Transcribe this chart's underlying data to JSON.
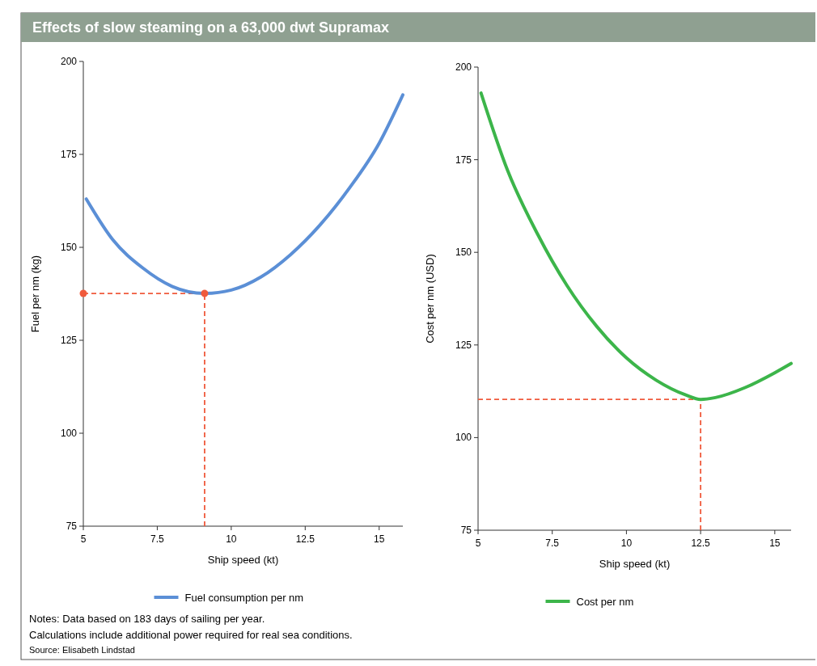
{
  "chart_data": [
    {
      "type": "line",
      "title": "Effects of slow steaming on a 63,000 dwt Supramax",
      "xlabel": "Ship speed (kt)",
      "ylabel": "Fuel per nm (kg)",
      "xlim": [
        5,
        15.8
      ],
      "ylim": [
        75,
        200
      ],
      "xticks": [
        5,
        7.5,
        10,
        12.5,
        15
      ],
      "yticks": [
        75,
        100,
        125,
        150,
        175,
        200
      ],
      "legend": "bottom",
      "series": [
        {
          "name": "Fuel consumption per nm",
          "color": "#5b8fd6",
          "x": [
            5.1,
            6,
            7,
            8,
            9.1,
            10,
            11,
            12,
            13,
            14,
            15,
            15.8
          ],
          "values": [
            163,
            152,
            144.5,
            139.5,
            137.6,
            138.5,
            142,
            148,
            156,
            166,
            178,
            191
          ]
        },
        {
          "type": "scatter",
          "color": "#f05a3c",
          "x": [
            5,
            9.1
          ],
          "values": [
            137.6,
            137.6
          ],
          "marker": "circle"
        }
      ],
      "ref_lines": [
        {
          "axis": "x",
          "value": 9.1,
          "color": "#f05a3c",
          "line_style": "dashed"
        },
        {
          "axis": "y",
          "value": 137.6,
          "color": "#f05a3c",
          "line_style": "dashed"
        }
      ],
      "annotations": [
        "Notes: Data based on 183 days of sailing per year.",
        "Calculations include additional power required for real sea conditions.",
        "Source: Elisabeth Lindstad"
      ]
    },
    {
      "type": "line",
      "xlabel": "Ship speed (kt)",
      "ylabel": "Cost per nm (USD)",
      "xlim": [
        5,
        15.55
      ],
      "ylim": [
        75,
        200
      ],
      "xticks": [
        5,
        7.5,
        10,
        12.5,
        15
      ],
      "yticks": [
        75,
        100,
        125,
        150,
        175,
        200
      ],
      "legend": "bottom",
      "series": [
        {
          "name": "Cost per nm",
          "color": "#3cb54a",
          "x": [
            5.1,
            6,
            7,
            8,
            9,
            10,
            11,
            12,
            12.5,
            13,
            14,
            15,
            15.55
          ],
          "values": [
            193,
            172,
            155,
            141,
            130,
            121.5,
            115.5,
            111.5,
            110.3,
            110.8,
            113.5,
            117.5,
            120
          ]
        }
      ],
      "ref_lines": [
        {
          "axis": "x",
          "value": 12.5,
          "color": "#f05a3c",
          "line_style": "dashed"
        },
        {
          "axis": "y",
          "value": 110.3,
          "color": "#f05a3c",
          "line_style": "dashed"
        }
      ]
    }
  ]
}
